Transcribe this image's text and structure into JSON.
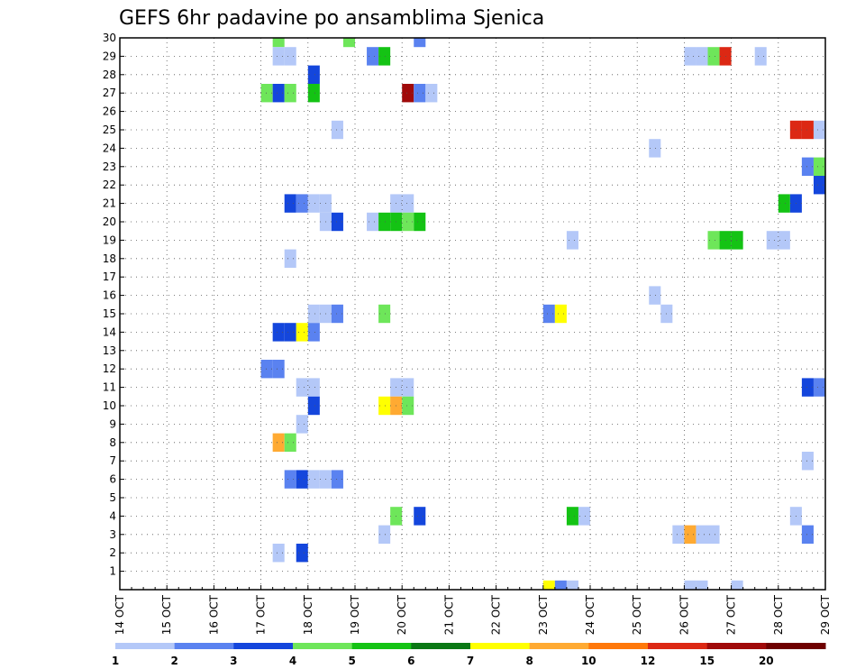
{
  "chart_data": {
    "type": "heatmap",
    "title": "GEFS 6hr padavine po ansamblima Sjenica",
    "x_ticks": [
      "14 OCT",
      "15 OCT",
      "16 OCT",
      "17 OCT",
      "18 OCT",
      "19 OCT",
      "20 OCT",
      "21 OCT",
      "22 OCT",
      "23 OCT",
      "24 OCT",
      "25 OCT",
      "26 OCT",
      "27 OCT",
      "28 OCT",
      "29 OCT"
    ],
    "y_ticks": [
      1,
      2,
      3,
      4,
      5,
      6,
      7,
      8,
      9,
      10,
      11,
      12,
      13,
      14,
      15,
      16,
      17,
      18,
      19,
      20,
      21,
      22,
      23,
      24,
      25,
      26,
      27,
      28,
      29,
      30
    ],
    "x_range_days": [
      14,
      29
    ],
    "y_range": [
      0,
      30
    ],
    "grid": true,
    "legend": {
      "position": "bottom",
      "labels": [
        "1",
        "2",
        "3",
        "4",
        "5",
        "6",
        "7",
        "8",
        "10",
        "12",
        "15",
        "20"
      ],
      "colors": [
        "#b4c8f8",
        "#5a82f0",
        "#1446dc",
        "#6ee65a",
        "#14c314",
        "#0a7814",
        "#ffff00",
        "#ffaa32",
        "#ff780a",
        "#dc2814",
        "#a00a0a",
        "#6e0000"
      ]
    },
    "cells": [
      {
        "member": 30,
        "day": 17.25,
        "level": 4
      },
      {
        "member": 30,
        "day": 18.75,
        "level": 4
      },
      {
        "member": 30,
        "day": 20.25,
        "level": 2
      },
      {
        "member": 29,
        "day": 17.25,
        "level": 1
      },
      {
        "member": 29,
        "day": 17.5,
        "level": 1
      },
      {
        "member": 29,
        "day": 19.25,
        "level": 2
      },
      {
        "member": 29,
        "day": 19.5,
        "level": 5
      },
      {
        "member": 29,
        "day": 26.0,
        "level": 1
      },
      {
        "member": 29,
        "day": 26.25,
        "level": 1
      },
      {
        "member": 29,
        "day": 26.5,
        "level": 4
      },
      {
        "member": 29,
        "day": 26.75,
        "level": 12
      },
      {
        "member": 29,
        "day": 27.5,
        "level": 1
      },
      {
        "member": 28,
        "day": 18.0,
        "level": 3
      },
      {
        "member": 27,
        "day": 17.0,
        "level": 4
      },
      {
        "member": 27,
        "day": 17.25,
        "level": 3
      },
      {
        "member": 27,
        "day": 17.5,
        "level": 4
      },
      {
        "member": 27,
        "day": 18.0,
        "level": 5
      },
      {
        "member": 27,
        "day": 20.0,
        "level": 15
      },
      {
        "member": 27,
        "day": 20.25,
        "level": 2
      },
      {
        "member": 27,
        "day": 20.5,
        "level": 1
      },
      {
        "member": 25,
        "day": 18.5,
        "level": 1
      },
      {
        "member": 25,
        "day": 28.25,
        "level": 12
      },
      {
        "member": 25,
        "day": 28.5,
        "level": 12
      },
      {
        "member": 25,
        "day": 28.75,
        "level": 1
      },
      {
        "member": 24,
        "day": 25.25,
        "level": 1
      },
      {
        "member": 23,
        "day": 28.5,
        "level": 2
      },
      {
        "member": 23,
        "day": 28.75,
        "level": 4
      },
      {
        "member": 22,
        "day": 28.75,
        "level": 3
      },
      {
        "member": 21,
        "day": 17.5,
        "level": 3
      },
      {
        "member": 21,
        "day": 17.75,
        "level": 2
      },
      {
        "member": 21,
        "day": 18.0,
        "level": 1
      },
      {
        "member": 21,
        "day": 18.25,
        "level": 1
      },
      {
        "member": 21,
        "day": 19.75,
        "level": 1
      },
      {
        "member": 21,
        "day": 20.0,
        "level": 1
      },
      {
        "member": 21,
        "day": 28.0,
        "level": 5
      },
      {
        "member": 21,
        "day": 28.25,
        "level": 3
      },
      {
        "member": 20,
        "day": 18.25,
        "level": 1
      },
      {
        "member": 20,
        "day": 18.5,
        "level": 3
      },
      {
        "member": 20,
        "day": 19.25,
        "level": 1
      },
      {
        "member": 20,
        "day": 19.5,
        "level": 5
      },
      {
        "member": 20,
        "day": 19.75,
        "level": 5
      },
      {
        "member": 20,
        "day": 20.0,
        "level": 4
      },
      {
        "member": 20,
        "day": 20.25,
        "level": 5
      },
      {
        "member": 19,
        "day": 23.5,
        "level": 1
      },
      {
        "member": 19,
        "day": 26.5,
        "level": 4
      },
      {
        "member": 19,
        "day": 26.75,
        "level": 5
      },
      {
        "member": 19,
        "day": 27.0,
        "level": 5
      },
      {
        "member": 19,
        "day": 27.75,
        "level": 1
      },
      {
        "member": 19,
        "day": 28.0,
        "level": 1
      },
      {
        "member": 18,
        "day": 17.5,
        "level": 1
      },
      {
        "member": 16,
        "day": 25.25,
        "level": 1
      },
      {
        "member": 15,
        "day": 18.0,
        "level": 1
      },
      {
        "member": 15,
        "day": 18.25,
        "level": 1
      },
      {
        "member": 15,
        "day": 18.5,
        "level": 2
      },
      {
        "member": 15,
        "day": 19.5,
        "level": 4
      },
      {
        "member": 15,
        "day": 23.0,
        "level": 2
      },
      {
        "member": 15,
        "day": 23.25,
        "level": 7
      },
      {
        "member": 15,
        "day": 25.5,
        "level": 1
      },
      {
        "member": 14,
        "day": 17.25,
        "level": 3
      },
      {
        "member": 14,
        "day": 17.5,
        "level": 3
      },
      {
        "member": 14,
        "day": 17.75,
        "level": 7
      },
      {
        "member": 14,
        "day": 18.0,
        "level": 2
      },
      {
        "member": 12,
        "day": 17.0,
        "level": 2
      },
      {
        "member": 12,
        "day": 17.25,
        "level": 2
      },
      {
        "member": 11,
        "day": 17.75,
        "level": 1
      },
      {
        "member": 11,
        "day": 18.0,
        "level": 1
      },
      {
        "member": 11,
        "day": 19.75,
        "level": 1
      },
      {
        "member": 11,
        "day": 20.0,
        "level": 1
      },
      {
        "member": 11,
        "day": 28.5,
        "level": 3
      },
      {
        "member": 11,
        "day": 28.75,
        "level": 2
      },
      {
        "member": 10,
        "day": 18.0,
        "level": 3
      },
      {
        "member": 10,
        "day": 19.5,
        "level": 7
      },
      {
        "member": 10,
        "day": 19.75,
        "level": 8
      },
      {
        "member": 10,
        "day": 20.0,
        "level": 4
      },
      {
        "member": 9,
        "day": 17.75,
        "level": 1
      },
      {
        "member": 8,
        "day": 17.25,
        "level": 8
      },
      {
        "member": 8,
        "day": 17.5,
        "level": 4
      },
      {
        "member": 7,
        "day": 28.5,
        "level": 1
      },
      {
        "member": 6,
        "day": 17.5,
        "level": 2
      },
      {
        "member": 6,
        "day": 17.75,
        "level": 3
      },
      {
        "member": 6,
        "day": 18.0,
        "level": 1
      },
      {
        "member": 6,
        "day": 18.25,
        "level": 1
      },
      {
        "member": 6,
        "day": 18.5,
        "level": 2
      },
      {
        "member": 4,
        "day": 19.75,
        "level": 4
      },
      {
        "member": 4,
        "day": 20.25,
        "level": 3
      },
      {
        "member": 4,
        "day": 23.5,
        "level": 5
      },
      {
        "member": 4,
        "day": 23.75,
        "level": 1
      },
      {
        "member": 4,
        "day": 28.25,
        "level": 1
      },
      {
        "member": 3,
        "day": 19.5,
        "level": 1
      },
      {
        "member": 3,
        "day": 25.75,
        "level": 1
      },
      {
        "member": 3,
        "day": 26.0,
        "level": 8
      },
      {
        "member": 3,
        "day": 26.25,
        "level": 1
      },
      {
        "member": 3,
        "day": 26.5,
        "level": 1
      },
      {
        "member": 3,
        "day": 28.5,
        "level": 2
      },
      {
        "member": 2,
        "day": 17.25,
        "level": 1
      },
      {
        "member": 2,
        "day": 17.75,
        "level": 3
      },
      {
        "member": 0,
        "day": 23.0,
        "level": 7
      },
      {
        "member": 0,
        "day": 23.25,
        "level": 2
      },
      {
        "member": 0,
        "day": 23.5,
        "level": 1
      },
      {
        "member": 0,
        "day": 26.0,
        "level": 1
      },
      {
        "member": 0,
        "day": 26.25,
        "level": 1
      },
      {
        "member": 0,
        "day": 27.0,
        "level": 1
      }
    ]
  }
}
